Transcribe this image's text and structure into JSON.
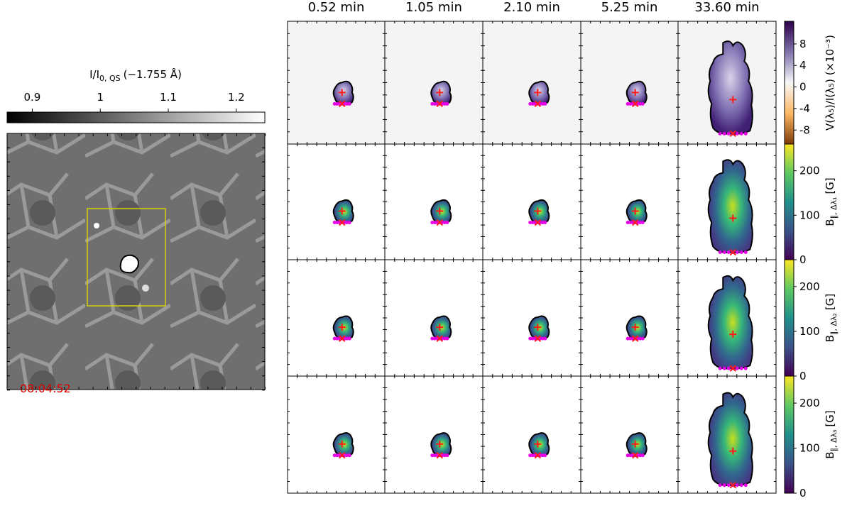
{
  "intensity_panel": {
    "colorbar": {
      "base": "I/I",
      "subscript": "0, QS",
      "suffix": "(−1.755 Å)",
      "lim": [
        0.863,
        1.242
      ],
      "ticks": [
        0.9,
        1.0,
        1.1,
        1.2
      ]
    },
    "timestamp": "08:04:52"
  },
  "columns": [
    "0.52 min",
    "1.05 min",
    "2.10 min",
    "5.25 min",
    "33.60 min"
  ],
  "colorbars": [
    {
      "base": "V(λ₅)/I(λ₅) (×10⁻³)",
      "lim": [
        -10.6,
        12.2
      ],
      "ticks": [
        -8,
        -4,
        0,
        4,
        8
      ]
    },
    {
      "base": "B",
      "subscript": "∥, Δλ₁",
      "suffix": "[G]",
      "lim": [
        0,
        260
      ],
      "ticks": [
        0,
        100,
        200
      ]
    },
    {
      "base": "B",
      "subscript": "∥, Δλ₂",
      "suffix": "[G]",
      "lim": [
        0,
        260
      ],
      "ticks": [
        0,
        100,
        200
      ]
    },
    {
      "base": "B",
      "subscript": "∥, Δλ₃",
      "suffix": "[G]",
      "lim": [
        0,
        260
      ],
      "ticks": [
        0,
        100,
        200
      ]
    }
  ]
}
